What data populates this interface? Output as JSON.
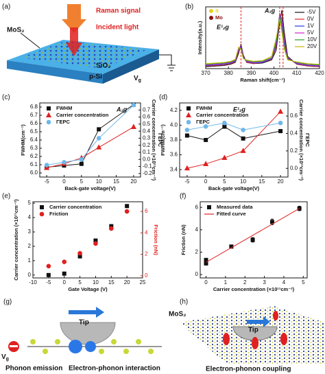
{
  "chart_data": [
    {
      "type": "line",
      "panel_label": "(b)",
      "xlabel": "Raman shift(cm⁻¹)",
      "ylabel": "Intensity(a.u.)",
      "x": [
        370,
        374,
        378,
        381,
        383,
        384.5,
        385.5,
        386.5,
        388,
        391,
        395,
        399,
        401,
        402.5,
        403.5,
        404.5,
        406,
        410,
        415,
        420
      ],
      "xlim": [
        370,
        420
      ],
      "xticks": [
        370,
        380,
        390,
        400,
        410,
        420
      ],
      "ylim": [
        0,
        1
      ],
      "legend": "upper right",
      "series": [
        {
          "name": "-5V",
          "color": "#111111",
          "values": [
            0.03,
            0.04,
            0.05,
            0.07,
            0.1,
            0.25,
            0.4,
            0.22,
            0.1,
            0.08,
            0.09,
            0.14,
            0.3,
            0.75,
            0.95,
            0.6,
            0.2,
            0.07,
            0.04,
            0.03
          ]
        },
        {
          "name": "0V",
          "color": "#e02020",
          "values": [
            0.04,
            0.05,
            0.06,
            0.08,
            0.11,
            0.28,
            0.38,
            0.2,
            0.1,
            0.08,
            0.1,
            0.15,
            0.35,
            0.85,
            0.88,
            0.5,
            0.18,
            0.07,
            0.04,
            0.03
          ]
        },
        {
          "name": "1V",
          "color": "#2040e0",
          "values": [
            0.05,
            0.06,
            0.07,
            0.09,
            0.12,
            0.3,
            0.36,
            0.19,
            0.11,
            0.09,
            0.1,
            0.16,
            0.38,
            0.88,
            0.8,
            0.45,
            0.17,
            0.08,
            0.05,
            0.04
          ]
        },
        {
          "name": "5V",
          "color": "#d020d0",
          "values": [
            0.06,
            0.07,
            0.08,
            0.1,
            0.13,
            0.32,
            0.34,
            0.18,
            0.12,
            0.1,
            0.11,
            0.17,
            0.42,
            0.9,
            0.72,
            0.4,
            0.16,
            0.09,
            0.06,
            0.05
          ]
        },
        {
          "name": "10V",
          "color": "#20a020",
          "values": [
            0.07,
            0.08,
            0.09,
            0.11,
            0.14,
            0.34,
            0.32,
            0.17,
            0.13,
            0.11,
            0.12,
            0.18,
            0.45,
            0.86,
            0.65,
            0.36,
            0.15,
            0.1,
            0.07,
            0.06
          ]
        },
        {
          "name": "20V",
          "color": "#c8b400",
          "values": [
            0.08,
            0.09,
            0.1,
            0.12,
            0.15,
            0.35,
            0.3,
            0.16,
            0.14,
            0.12,
            0.13,
            0.2,
            0.5,
            0.8,
            0.58,
            0.32,
            0.14,
            0.11,
            0.08,
            0.07
          ]
        }
      ],
      "vlines": [
        385.5,
        402.5,
        404
      ],
      "vline_color": "#e02020",
      "annotations": [
        "A₁g",
        "E¹₂g"
      ],
      "species": [
        {
          "name": "S",
          "color": "#e8d020"
        },
        {
          "name": "Mo",
          "color": "#8b1010"
        }
      ]
    },
    {
      "type": "line",
      "panel_label": "(c)",
      "xlabel": "Back-gate voltage(V)",
      "ylabel": "FWHM(cm⁻¹)",
      "y2label": [
        "Carrier concentration (×10¹³cm⁻²)",
        "ΓEPC"
      ],
      "x": [
        -5,
        0,
        5,
        10,
        20
      ],
      "xlim": [
        -7,
        22
      ],
      "xticks": [
        -5,
        0,
        5,
        10,
        15,
        20
      ],
      "ylim": [
        5.95,
        6.85
      ],
      "yticks": [
        {
          "value": 6.0,
          "label": "6.0"
        },
        6.1,
        6.2,
        6.3,
        6.4,
        6.5,
        6.6,
        6.7,
        6.8
      ],
      "y2lim": [
        -0.25,
        0.8
      ],
      "y2ticks": [
        -0.2,
        -0.1,
        {
          "value": 0.0,
          "label": "0.0"
        },
        0.1,
        0.2,
        0.3,
        0.4,
        0.5,
        0.6,
        0.7
      ],
      "legend": "upper left",
      "annotations": [
        "A₁g"
      ],
      "series": [
        {
          "name": "FWHM",
          "color": "#111111",
          "marker": "square",
          "values": [
            6.07,
            6.09,
            6.11,
            6.53,
            6.83
          ]
        },
        {
          "name": "Carrier concentration",
          "color": "#e02020",
          "marker": "triangle",
          "axis": "y2",
          "values": [
            -0.12,
            -0.06,
            0.02,
            0.17,
            0.46
          ]
        },
        {
          "name": "ΓEPC",
          "color": "#6fb7e8",
          "marker": "circle",
          "axis": "y2",
          "values": [
            -0.08,
            -0.04,
            0.0,
            0.3,
            0.77
          ]
        }
      ]
    },
    {
      "type": "line",
      "panel_label": "(d)",
      "xlabel": "Back-gate voltage(V)",
      "ylabel": "FWHM(cm⁻¹)",
      "y2label": [
        "Carrier concentration (×10¹³cm⁻²)",
        "ΓEPC"
      ],
      "x": [
        -5,
        0,
        5,
        10,
        20
      ],
      "xlim": [
        -7,
        22
      ],
      "xticks": [
        -5,
        0,
        5,
        10,
        15,
        20
      ],
      "ylim": [
        3.3,
        4.3
      ],
      "yticks": [
        3.4,
        3.6,
        3.8,
        {
          "value": 4.0,
          "label": "4.0"
        },
        4.2
      ],
      "y2lim": [
        -0.1,
        0.75
      ],
      "y2ticks": [
        {
          "value": 0.0,
          "label": "0.0"
        },
        0.2,
        0.4,
        0.6
      ],
      "legend": "upper left",
      "annotations": [
        "E¹₂g"
      ],
      "series": [
        {
          "name": "FWHM",
          "color": "#111111",
          "marker": "square",
          "values": [
            3.86,
            3.8,
            3.98,
            3.82,
            3.92
          ]
        },
        {
          "name": "Carrier concentration",
          "color": "#e02020",
          "marker": "triangle",
          "axis": "y2",
          "values": [
            0.0,
            0.05,
            0.12,
            0.2,
            0.65
          ]
        },
        {
          "name": "ΓEPC",
          "color": "#6fb7e8",
          "marker": "circle",
          "axis": "y2",
          "values": [
            0.44,
            0.48,
            0.52,
            0.44,
            0.52
          ]
        }
      ]
    },
    {
      "type": "scatter",
      "panel_label": "(e)",
      "xlabel": "Gate Voltage (V)",
      "ylabel": "Carrier concentration (×10¹¹cm⁻²)",
      "y2label": [
        "Friction (nN)"
      ],
      "y2_color": "#e02020",
      "x": [
        -5,
        0,
        5,
        10,
        15,
        20
      ],
      "xlim": [
        -10,
        25
      ],
      "xticks": [
        -10,
        -5,
        0,
        5,
        10,
        15,
        20,
        25
      ],
      "ylim": [
        -0.2,
        5.1
      ],
      "yticks": [
        0,
        1,
        2,
        3,
        4,
        5
      ],
      "y2lim": [
        -0.2,
        6.9
      ],
      "y2ticks": [
        0,
        2,
        4,
        6
      ],
      "legend": "upper left",
      "series": [
        {
          "name": "Carrier concentration",
          "color": "#111111",
          "marker": "square",
          "values": [
            0.0,
            0.1,
            1.3,
            2.4,
            3.4,
            4.8
          ]
        },
        {
          "name": "Friction",
          "color": "#e02020",
          "marker": "circle",
          "axis": "y2",
          "values": [
            0.9,
            1.3,
            2.1,
            3.0,
            4.4,
            6.0
          ]
        }
      ]
    },
    {
      "type": "scatter",
      "panel_label": "(f)",
      "xlabel": "Carrier concentration (×10¹¹cm⁻²)",
      "ylabel": "Friction (nN)",
      "xlim": [
        -0.3,
        5.2
      ],
      "xticks": [
        0,
        1,
        2,
        3,
        4,
        5
      ],
      "ylim": [
        -0.3,
        6.5
      ],
      "yticks": [
        0,
        2,
        4,
        6
      ],
      "legend": "upper left",
      "series": [
        {
          "name": "Measured data",
          "color": "#111111",
          "marker": "square",
          "x": [
            0.0,
            0.0,
            1.3,
            2.4,
            3.4,
            4.8
          ],
          "values": [
            1.0,
            1.3,
            2.5,
            3.1,
            4.7,
            5.9
          ],
          "errors": [
            0.15,
            0.15,
            0.12,
            0.2,
            0.25,
            0.2
          ]
        },
        {
          "name": "Fitted curve",
          "color": "#e02020",
          "style": "line",
          "x": [
            0.0,
            4.8
          ],
          "values": [
            1.1,
            5.9
          ]
        }
      ]
    }
  ],
  "diagrams": {
    "a": {
      "panel_label": "(a)",
      "raman": "Raman signal",
      "incident": "Incident light",
      "layer": "MoS₂",
      "oxide": "SiO₂",
      "substrate": "p-Si",
      "gate": "V",
      "gate_sub": "g"
    },
    "g": {
      "panel_label": "(g)",
      "tip": "Tip",
      "gate": "V",
      "gate_sub": "g",
      "left": "Phonon emission",
      "right": "Electron-phonon interaction"
    },
    "h": {
      "panel_label": "(h)",
      "layer": "MoS₂",
      "tip": "Tip",
      "caption": "Electron-phonon coupling"
    }
  }
}
